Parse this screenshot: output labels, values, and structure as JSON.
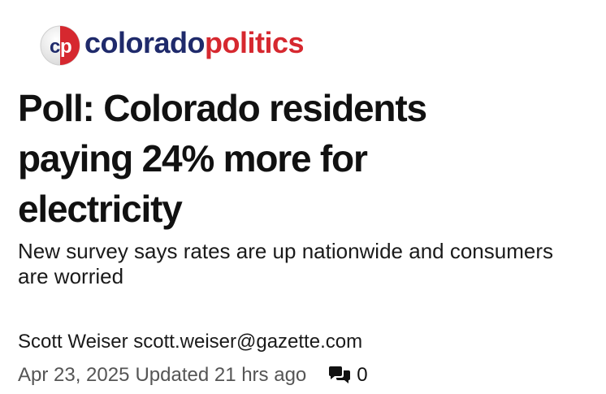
{
  "brand": {
    "mark_letters": "cp",
    "name_part1": "colorado",
    "name_part2": "politics",
    "colors": {
      "navy": "#1f2a6b",
      "red": "#d6282f"
    }
  },
  "article": {
    "headline": "Poll: Colorado residents paying 24% more for electricity",
    "subheadline": "New survey says rates are up nationwide and consumers are worried",
    "author_name": "Scott Weiser",
    "author_email": "scott.weiser@gazette.com",
    "date": "Apr 23, 2025",
    "updated": "Updated 21 hrs ago",
    "comment_icon": "comments-icon",
    "comment_count": "0"
  }
}
